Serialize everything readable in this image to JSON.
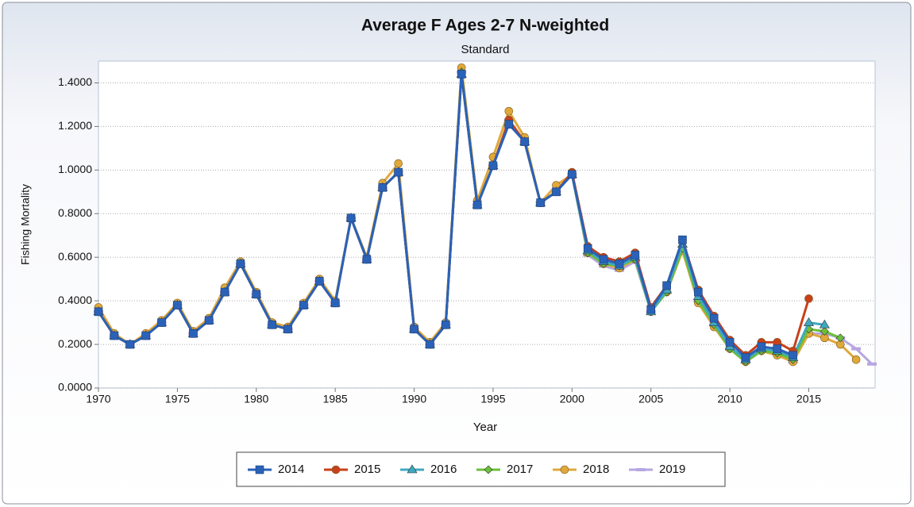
{
  "chart_data": {
    "type": "line",
    "title": "Average F Ages 2-7 N-weighted",
    "subtitle": "Standard",
    "x_label": "Year",
    "y_label": "Fishing Mortality",
    "x": [
      1970,
      1971,
      1972,
      1973,
      1974,
      1975,
      1976,
      1977,
      1978,
      1979,
      1980,
      1981,
      1982,
      1983,
      1984,
      1985,
      1986,
      1987,
      1988,
      1989,
      1990,
      1991,
      1992,
      1993,
      1994,
      1995,
      1996,
      1997,
      1998,
      1999,
      2000,
      2001,
      2002,
      2003,
      2004,
      2005,
      2006,
      2007,
      2008,
      2009,
      2010,
      2011,
      2012,
      2013,
      2014,
      2015,
      2016,
      2017,
      2018,
      2019
    ],
    "xlim": [
      1970,
      2019
    ],
    "xticks": [
      1970,
      1975,
      1980,
      1985,
      1990,
      1995,
      2000,
      2005,
      2010,
      2015
    ],
    "ylim": [
      0,
      1.5
    ],
    "yticks": [
      {
        "value": 0,
        "label": "0.0000"
      },
      {
        "value": 0.2,
        "label": "0.2000"
      },
      {
        "value": 0.4,
        "label": "0.4000"
      },
      {
        "value": 0.6,
        "label": "0.6000"
      },
      {
        "value": 0.8,
        "label": "0.8000"
      },
      {
        "value": 1.0,
        "label": "1.0000"
      },
      {
        "value": 1.2,
        "label": "1.2000"
      },
      {
        "value": 1.4,
        "label": "1.4000"
      }
    ],
    "grid": true,
    "legend": "bottom",
    "series": [
      {
        "name": "2014",
        "color": "#2a62b8",
        "marker": "square",
        "values": [
          0.35,
          0.24,
          0.2,
          0.24,
          0.3,
          0.38,
          0.25,
          0.31,
          0.44,
          0.57,
          0.43,
          0.29,
          0.27,
          0.38,
          0.49,
          0.39,
          0.78,
          0.59,
          0.92,
          0.99,
          0.27,
          0.2,
          0.29,
          1.44,
          0.84,
          1.02,
          1.21,
          1.13,
          0.85,
          0.9,
          0.98,
          0.64,
          0.59,
          0.57,
          0.61,
          0.36,
          0.47,
          0.68,
          0.44,
          0.32,
          0.21,
          0.14,
          0.19,
          0.18,
          0.15,
          null,
          null,
          null,
          null,
          null
        ]
      },
      {
        "name": "2015",
        "color": "#c8401a",
        "marker": "circle",
        "values": [
          0.35,
          0.24,
          0.2,
          0.24,
          0.3,
          0.38,
          0.25,
          0.31,
          0.44,
          0.57,
          0.43,
          0.29,
          0.27,
          0.38,
          0.49,
          0.39,
          0.78,
          0.59,
          0.92,
          0.99,
          0.27,
          0.2,
          0.29,
          1.44,
          0.84,
          1.02,
          1.23,
          1.13,
          0.85,
          0.9,
          0.99,
          0.65,
          0.6,
          0.58,
          0.62,
          0.37,
          0.47,
          0.68,
          0.45,
          0.33,
          0.22,
          0.15,
          0.21,
          0.21,
          0.17,
          0.41,
          null,
          null,
          null,
          null
        ]
      },
      {
        "name": "2016",
        "color": "#3fa8c0",
        "marker": "triangle",
        "values": [
          0.35,
          0.24,
          0.2,
          0.24,
          0.3,
          0.38,
          0.25,
          0.31,
          0.44,
          0.57,
          0.43,
          0.29,
          0.27,
          0.38,
          0.49,
          0.39,
          0.78,
          0.59,
          0.92,
          0.99,
          0.27,
          0.2,
          0.29,
          1.44,
          0.84,
          1.02,
          1.22,
          1.13,
          0.85,
          0.9,
          0.98,
          0.63,
          0.58,
          0.56,
          0.6,
          0.35,
          0.45,
          0.66,
          0.42,
          0.3,
          0.19,
          0.13,
          0.18,
          0.17,
          0.14,
          0.3,
          0.29,
          null,
          null,
          null
        ]
      },
      {
        "name": "2017",
        "color": "#6bbf3a",
        "marker": "diamond",
        "values": [
          0.35,
          0.24,
          0.2,
          0.24,
          0.3,
          0.38,
          0.25,
          0.31,
          0.44,
          0.57,
          0.43,
          0.29,
          0.27,
          0.38,
          0.49,
          0.39,
          0.78,
          0.59,
          0.92,
          0.99,
          0.27,
          0.2,
          0.29,
          1.45,
          0.84,
          1.02,
          1.23,
          1.13,
          0.85,
          0.9,
          0.98,
          0.62,
          0.57,
          0.56,
          0.59,
          0.35,
          0.44,
          0.64,
          0.4,
          0.29,
          0.18,
          0.12,
          0.17,
          0.16,
          0.13,
          0.27,
          0.26,
          0.23,
          null,
          null
        ]
      },
      {
        "name": "2018",
        "color": "#e0a83a",
        "marker": "circle",
        "values": [
          0.37,
          0.25,
          0.2,
          0.25,
          0.31,
          0.39,
          0.26,
          0.32,
          0.46,
          0.58,
          0.44,
          0.3,
          0.28,
          0.39,
          0.5,
          0.4,
          0.78,
          0.6,
          0.94,
          1.03,
          0.28,
          0.21,
          0.3,
          1.47,
          0.86,
          1.06,
          1.27,
          1.15,
          0.85,
          0.93,
          0.98,
          0.62,
          0.57,
          0.55,
          0.59,
          0.35,
          0.44,
          0.63,
          0.39,
          0.28,
          0.18,
          0.12,
          0.17,
          0.15,
          0.12,
          0.25,
          0.23,
          0.2,
          0.13,
          null
        ]
      },
      {
        "name": "2019",
        "color": "#b6a6e0",
        "marker": "dash",
        "values": [
          0.35,
          0.24,
          0.2,
          0.24,
          0.3,
          0.38,
          0.25,
          0.31,
          0.44,
          0.57,
          0.43,
          0.29,
          0.27,
          0.38,
          0.49,
          0.39,
          0.78,
          0.59,
          0.92,
          0.99,
          0.27,
          0.2,
          0.29,
          1.45,
          0.84,
          1.02,
          1.23,
          1.13,
          0.85,
          0.9,
          0.98,
          0.61,
          0.56,
          0.54,
          0.58,
          0.35,
          0.44,
          0.63,
          0.4,
          0.29,
          0.18,
          0.12,
          0.17,
          0.16,
          0.12,
          0.25,
          0.25,
          0.23,
          0.18,
          0.11
        ]
      }
    ]
  }
}
